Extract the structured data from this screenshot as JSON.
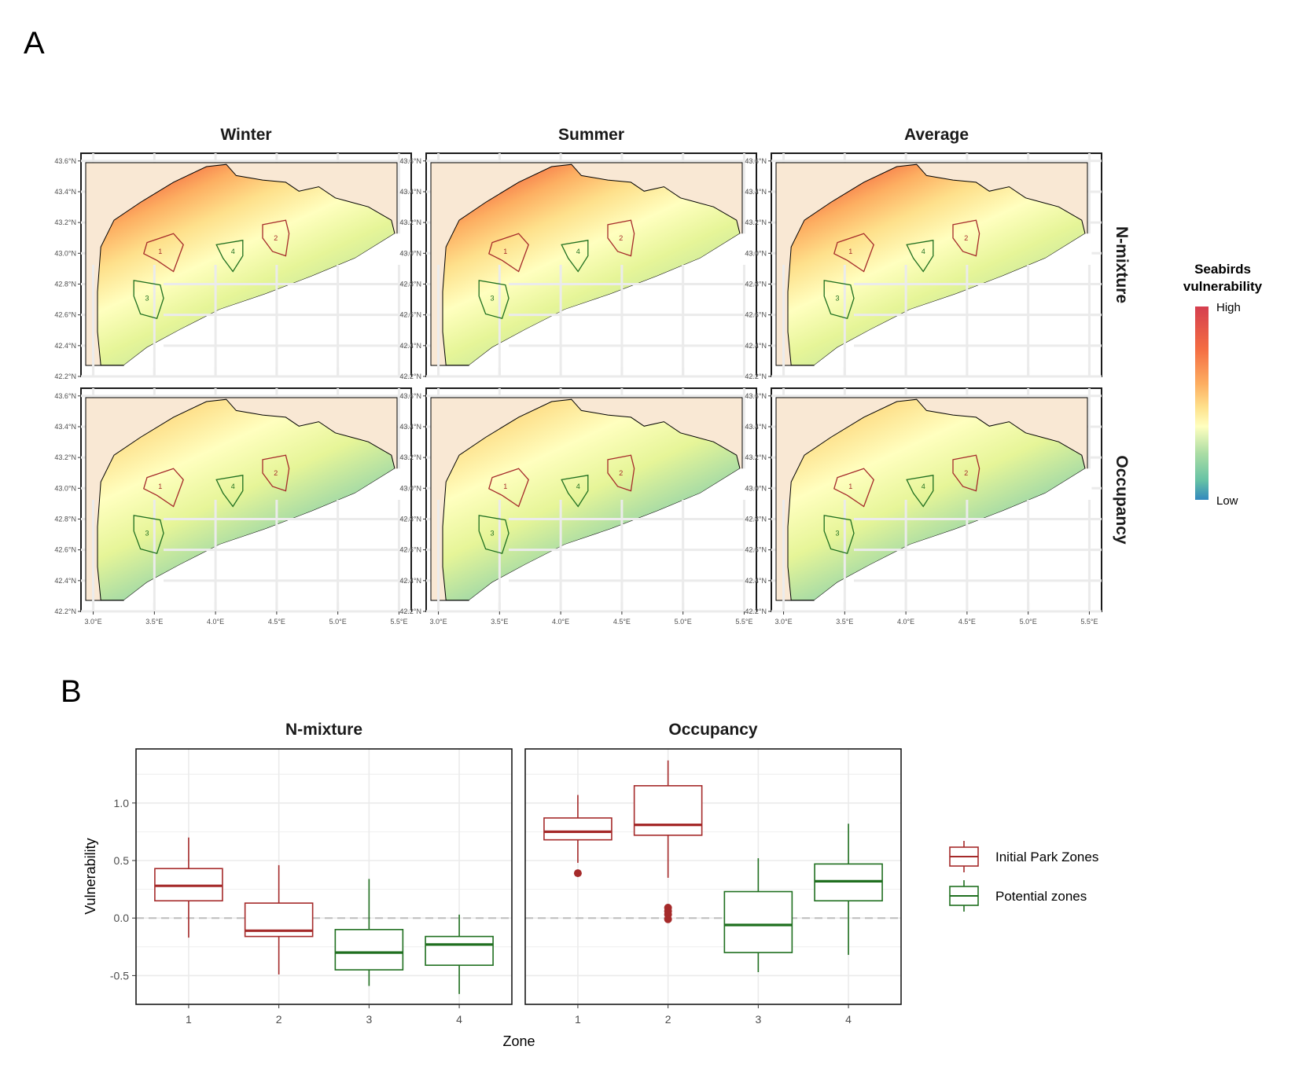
{
  "panel_labels": {
    "a": "A",
    "b": "B"
  },
  "colors": {
    "initial": "#a52a2a",
    "potential": "#1f6f1f",
    "land": "#f9e8d4",
    "high": "#d53e4f",
    "low": "#3288bd"
  },
  "chart_data": [
    {
      "type": "heatmap",
      "columns": [
        "Winter",
        "Summer",
        "Average"
      ],
      "rows": [
        "N-mixture",
        "Occupancy"
      ],
      "x_ticks": [
        "3.0°E",
        "3.5°E",
        "4.0°E",
        "4.5°E",
        "5.0°E",
        "5.5°E"
      ],
      "y_ticks": [
        "43.6°N",
        "43.4°N",
        "43.2°N",
        "43.0°N",
        "42.8°N",
        "42.6°N",
        "42.4°N",
        "42.2°N"
      ],
      "xlim": [
        2.9,
        5.6
      ],
      "ylim": [
        42.2,
        43.65
      ],
      "zones": [
        {
          "id": "1",
          "group": "initial"
        },
        {
          "id": "2",
          "group": "initial"
        },
        {
          "id": "3",
          "group": "potential"
        },
        {
          "id": "4",
          "group": "potential"
        }
      ],
      "legend": {
        "title_line1": "Seabirds",
        "title_line2": "vulnerability",
        "high": "High",
        "low": "Low"
      }
    },
    {
      "type": "box",
      "facets": [
        "N-mixture",
        "Occupancy"
      ],
      "categories": [
        "1",
        "2",
        "3",
        "4"
      ],
      "xlabel": "Zone",
      "ylabel": "Vulnerability",
      "ylim": [
        -0.75,
        1.47
      ],
      "y_ticks": [
        -0.5,
        0.0,
        0.5,
        1.0
      ],
      "y_tick_labels": [
        "-0.5",
        "0.0",
        "0.5",
        "1.0"
      ],
      "legend": [
        "Initial Park Zones",
        "Potential zones"
      ],
      "boxes": {
        "N-mixture": [
          {
            "zone": "1",
            "group": "initial",
            "min": -0.17,
            "q1": 0.15,
            "median": 0.28,
            "q3": 0.43,
            "max": 0.7,
            "outliers": []
          },
          {
            "zone": "2",
            "group": "initial",
            "min": -0.49,
            "q1": -0.16,
            "median": -0.11,
            "q3": 0.13,
            "max": 0.46,
            "outliers": []
          },
          {
            "zone": "3",
            "group": "potential",
            "min": -0.59,
            "q1": -0.45,
            "median": -0.3,
            "q3": -0.1,
            "max": 0.34,
            "outliers": []
          },
          {
            "zone": "4",
            "group": "potential",
            "min": -0.66,
            "q1": -0.41,
            "median": -0.23,
            "q3": -0.16,
            "max": 0.03,
            "outliers": []
          }
        ],
        "Occupancy": [
          {
            "zone": "1",
            "group": "initial",
            "min": 0.48,
            "q1": 0.68,
            "median": 0.75,
            "q3": 0.87,
            "max": 1.07,
            "outliers": [
              0.39
            ]
          },
          {
            "zone": "2",
            "group": "initial",
            "min": 0.35,
            "q1": 0.72,
            "median": 0.81,
            "q3": 1.15,
            "max": 1.37,
            "outliers": [
              0.09,
              0.06,
              0.03,
              -0.01
            ]
          },
          {
            "zone": "3",
            "group": "potential",
            "min": -0.47,
            "q1": -0.3,
            "median": -0.06,
            "q3": 0.23,
            "max": 0.52,
            "outliers": []
          },
          {
            "zone": "4",
            "group": "potential",
            "min": -0.32,
            "q1": 0.15,
            "median": 0.32,
            "q3": 0.47,
            "max": 0.82,
            "outliers": []
          }
        ]
      }
    }
  ]
}
